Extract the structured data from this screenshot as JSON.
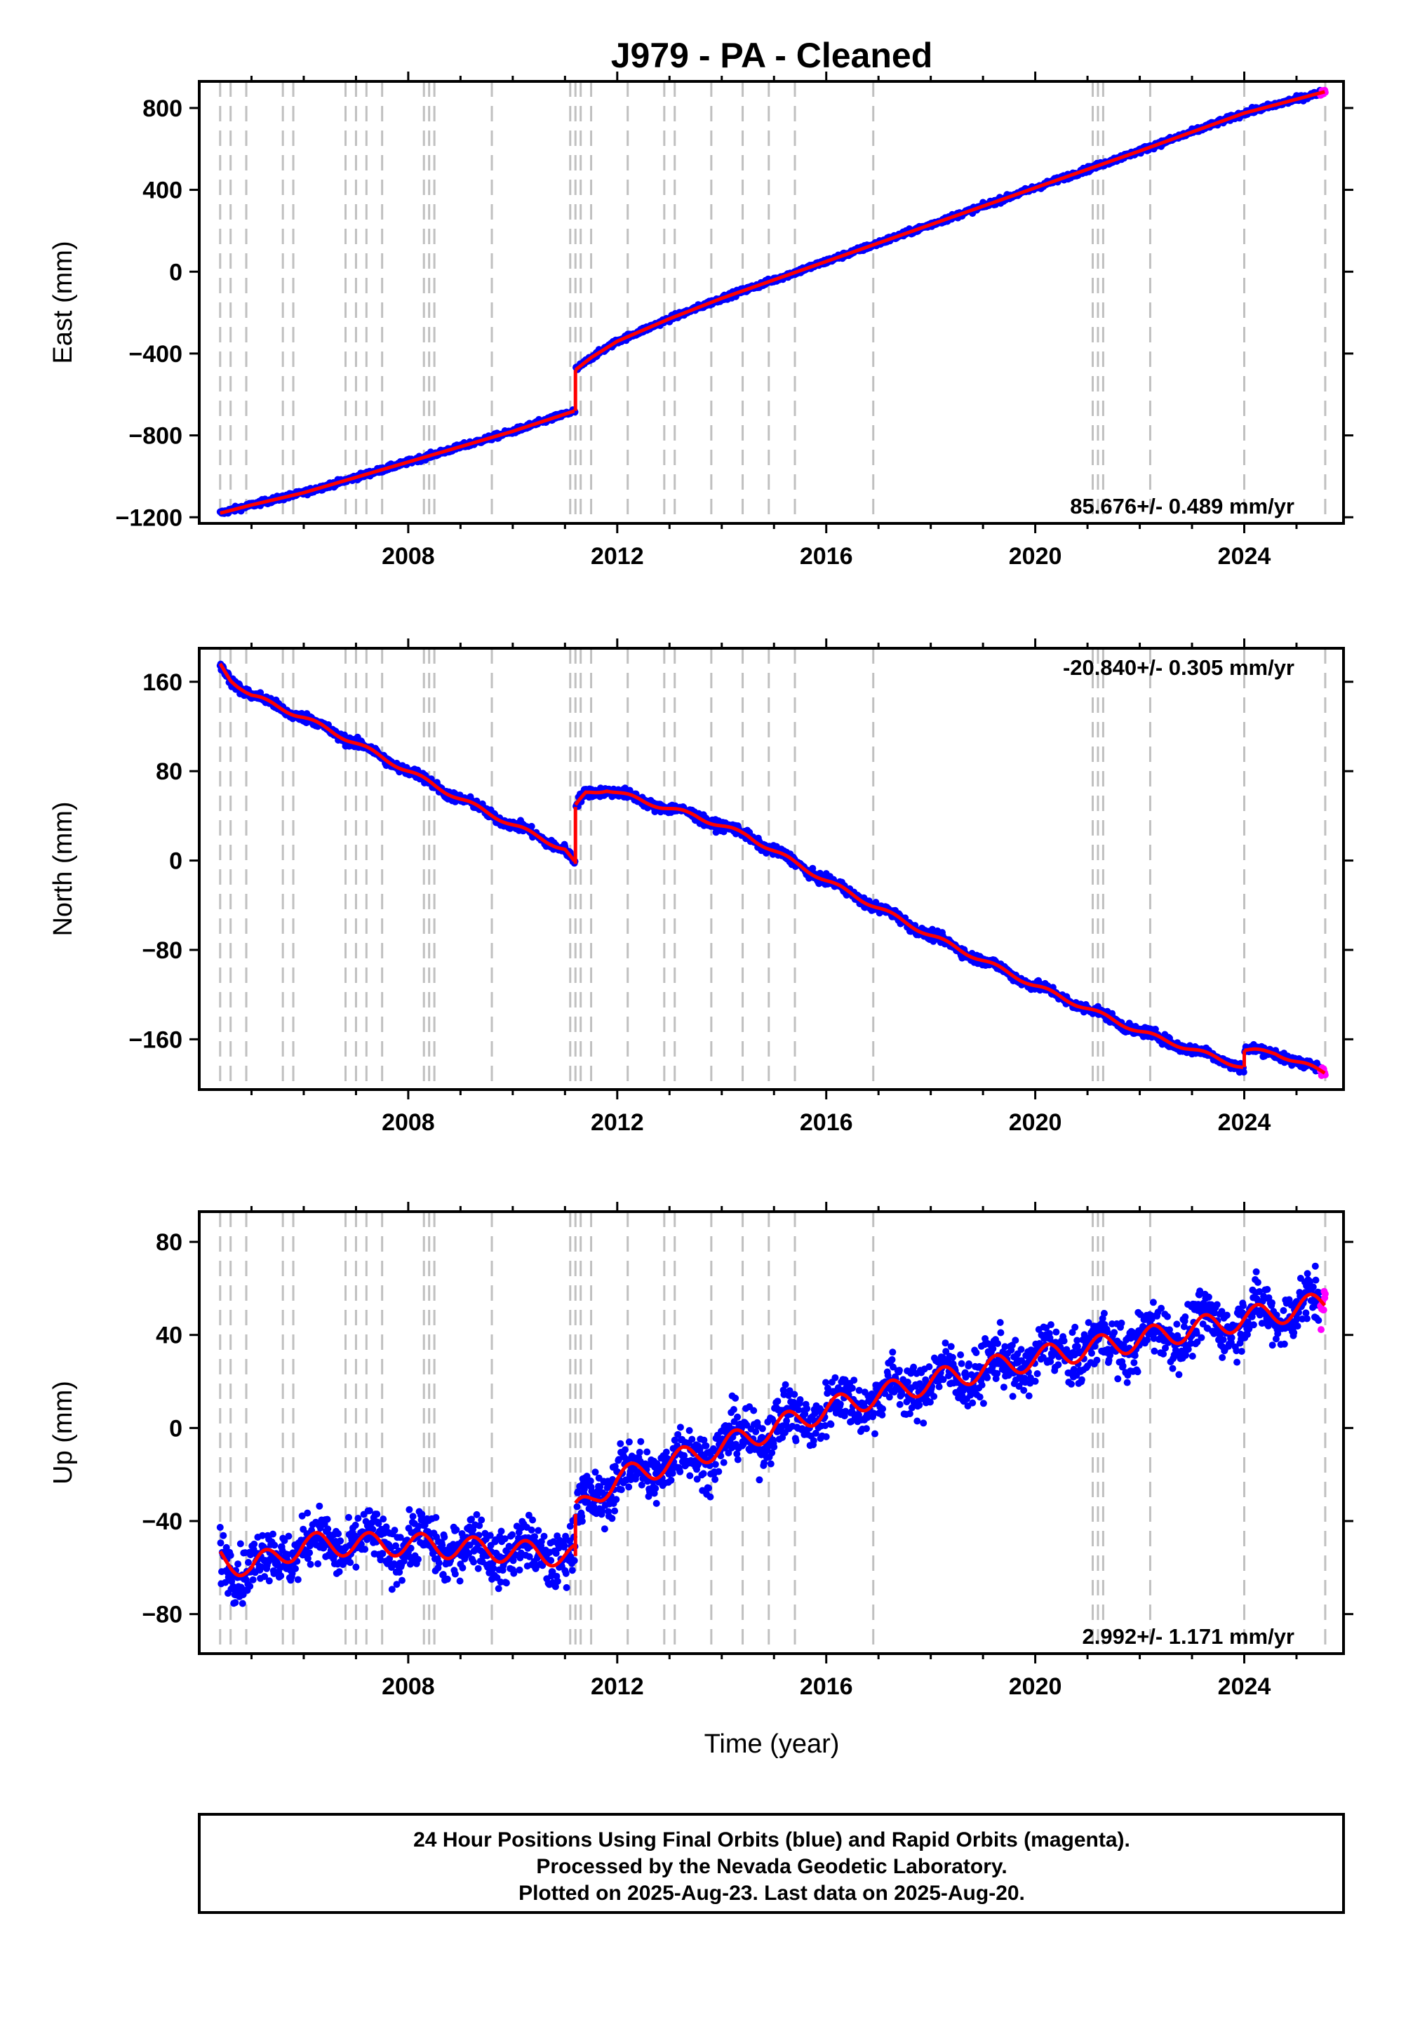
{
  "title": "J979  - PA - Cleaned",
  "xlabel": "Time (year)",
  "footer": {
    "line1": "24 Hour Positions Using Final Orbits (blue) and Rapid Orbits (magenta).",
    "line2": "Processed by the Nevada Geodetic Laboratory.",
    "line3": "Plotted on 2025-Aug-23. Last data on 2025-Aug-20."
  },
  "colors": {
    "final_orbits": "#0000ff",
    "rapid_orbits": "#ff00ff",
    "model": "#ff0000",
    "event_lines": "#c0c0c0"
  },
  "chart_data": [
    {
      "type": "scatter",
      "name": "east",
      "ylabel": "East (mm)",
      "rate": "85.676+/- 0.489 mm/yr",
      "rate_position": "bottom-right",
      "xlim": [
        2004.0,
        2025.9
      ],
      "ylim": [
        -1230,
        930
      ],
      "xticks": [
        2008,
        2012,
        2016,
        2020,
        2024
      ],
      "yticks": [
        800,
        400,
        0,
        -400,
        -800,
        -1200
      ],
      "event_lines": [
        2004.4,
        2004.6,
        2004.9,
        2005.6,
        2005.8,
        2006.8,
        2007.0,
        2007.2,
        2007.5,
        2008.3,
        2008.4,
        2008.5,
        2009.6,
        2011.1,
        2011.2,
        2011.3,
        2011.5,
        2012.2,
        2012.9,
        2013.1,
        2013.8,
        2014.4,
        2014.9,
        2015.4,
        2016.9,
        2021.1,
        2021.2,
        2021.3,
        2022.2,
        2024.0,
        2025.55
      ],
      "model": {
        "segments": [
          {
            "x": [
              2004.4,
              2005.0,
              2006.0,
              2007.0,
              2008.0,
              2009.0,
              2010.0,
              2011.19
            ],
            "y": [
              -1180,
              -1140,
              -1080,
              -1005,
              -930,
              -855,
              -780,
              -680
            ]
          },
          {
            "x": [
              2011.2,
              2011.5,
              2012.0,
              2013.0,
              2014.0,
              2016.0,
              2018.0,
              2020.0,
              2022.0,
              2024.0,
              2025.55
            ],
            "y": [
              -480,
              -420,
              -340,
              -230,
              -130,
              50,
              230,
              410,
              590,
              775,
              880
            ]
          }
        ]
      },
      "noise_mm": 9,
      "annual_amp_mm": 0,
      "rapid_from": 2025.45
    },
    {
      "type": "scatter",
      "name": "north",
      "ylabel": "North (mm)",
      "rate": "-20.840+/- 0.305 mm/yr",
      "rate_position": "top-right",
      "xlim": [
        2004.0,
        2025.9
      ],
      "ylim": [
        -205,
        190
      ],
      "xticks": [
        2008,
        2012,
        2016,
        2020,
        2024
      ],
      "yticks": [
        160,
        80,
        0,
        -80,
        -160
      ],
      "event_lines": [
        2004.4,
        2004.6,
        2004.9,
        2005.6,
        2005.8,
        2006.8,
        2007.0,
        2007.2,
        2007.5,
        2008.3,
        2008.4,
        2008.5,
        2009.6,
        2011.1,
        2011.2,
        2011.3,
        2011.5,
        2012.2,
        2012.9,
        2013.1,
        2013.8,
        2014.4,
        2014.9,
        2015.4,
        2016.9,
        2021.1,
        2021.2,
        2021.3,
        2022.2,
        2024.0,
        2025.55
      ],
      "model": {
        "segments": [
          {
            "x": [
              2004.4,
              2004.6,
              2005.0,
              2006.0,
              2007.0,
              2008.0,
              2009.0,
              2010.0,
              2011.0,
              2011.19
            ],
            "y": [
              175,
              162,
              148,
              128,
              105,
              80,
              55,
              32,
              10,
              -3
            ]
          },
          {
            "x": [
              2011.2,
              2011.4,
              2011.8,
              2012.5,
              2013.5,
              2014.5,
              2016.0,
              2018.0,
              2020.0,
              2022.0,
              2023.99
            ],
            "y": [
              48,
              60,
              64,
              53,
              40,
              22,
              -18,
              -67,
              -112,
              -153,
              -185
            ]
          },
          {
            "x": [
              2024.0,
              2024.6,
              2025.0,
              2025.55
            ],
            "y": [
              -170,
              -172,
              -180,
              -190
            ]
          }
        ]
      },
      "noise_mm": 3,
      "annual_amp_mm": 2,
      "rapid_from": 2025.45
    },
    {
      "type": "scatter",
      "name": "up",
      "ylabel": "Up (mm)",
      "rate": "2.992+/- 1.171 mm/yr",
      "rate_position": "bottom-right",
      "xlim": [
        2004.0,
        2025.9
      ],
      "ylim": [
        -97,
        93
      ],
      "xticks": [
        2008,
        2012,
        2016,
        2020,
        2024
      ],
      "yticks": [
        80,
        40,
        0,
        -40,
        -80
      ],
      "event_lines": [
        2004.4,
        2004.6,
        2004.9,
        2005.6,
        2005.8,
        2006.8,
        2007.0,
        2007.2,
        2007.5,
        2008.3,
        2008.4,
        2008.5,
        2009.6,
        2011.1,
        2011.2,
        2011.3,
        2011.5,
        2012.2,
        2012.9,
        2013.1,
        2013.8,
        2014.4,
        2014.9,
        2015.4,
        2016.9,
        2021.1,
        2021.2,
        2021.3,
        2022.2,
        2024.0,
        2025.55
      ],
      "model": {
        "segments": [
          {
            "x": [
              2004.4,
              2005.0,
              2006.0,
              2008.0,
              2010.0,
              2011.19
            ],
            "y": [
              -56,
              -60,
              -50,
              -50,
              -53,
              -55
            ]
          },
          {
            "x": [
              2011.2,
              2011.6,
              2012.0,
              2014.0,
              2016.0,
              2018.0,
              2020.0,
              2022.0,
              2024.0,
              2025.0,
              2025.55
            ],
            "y": [
              -37,
              -28,
              -22,
              -8,
              8,
              20,
              30,
              38,
              47,
              51,
              54
            ]
          }
        ]
      },
      "noise_mm": 8,
      "annual_amp_mm": 5,
      "rapid_from": 2025.45
    }
  ]
}
